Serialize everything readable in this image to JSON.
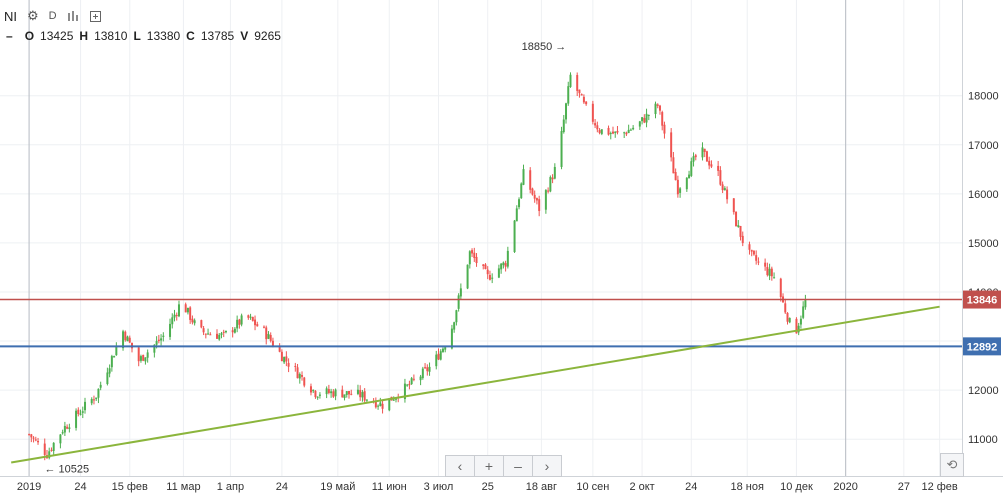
{
  "header": {
    "symbol": "NI",
    "timeframe": "D",
    "icons": [
      "gear-icon",
      "bar-style-icon",
      "compare-icon"
    ],
    "ohlc": [
      {
        "k": "O",
        "v": "13425"
      },
      {
        "k": "H",
        "v": "13810"
      },
      {
        "k": "L",
        "v": "13380"
      },
      {
        "k": "C",
        "v": "13785"
      },
      {
        "k": "V",
        "v": "9265"
      }
    ]
  },
  "nav": {
    "buttons": [
      "‹",
      "+",
      "–",
      "›"
    ],
    "reset": "⟲"
  },
  "colors": {
    "up": "#4caf50",
    "down": "#ef5350",
    "trend": "#8bb53c",
    "resistance": "#c0504d",
    "support": "#3f6fb0"
  },
  "chart_data": {
    "type": "candlestick",
    "y_ticks": [
      11000,
      12000,
      13000,
      14000,
      15000,
      16000,
      17000,
      18000
    ],
    "ylim": [
      10250,
      19950
    ],
    "x_ticks": [
      {
        "label": "2019",
        "day": 0
      },
      {
        "label": "24",
        "day": 23
      },
      {
        "label": "15 фев",
        "day": 45
      },
      {
        "label": "11 мар",
        "day": 69
      },
      {
        "label": "1 апр",
        "day": 90
      },
      {
        "label": "24",
        "day": 113
      },
      {
        "label": "19 май",
        "day": 138
      },
      {
        "label": "11 июн",
        "day": 161
      },
      {
        "label": "3 июл",
        "day": 183
      },
      {
        "label": "25",
        "day": 205
      },
      {
        "label": "18 авг",
        "day": 229
      },
      {
        "label": "10 сен",
        "day": 252
      },
      {
        "label": "2 окт",
        "day": 274
      },
      {
        "label": "24",
        "day": 296
      },
      {
        "label": "18 ноя",
        "day": 321
      },
      {
        "label": "10 дек",
        "day": 343
      },
      {
        "label": "2020",
        "day": 365
      },
      {
        "label": "27",
        "day": 391
      },
      {
        "label": "12 фев",
        "day": 407
      }
    ],
    "xlim": [
      -13,
      417
    ],
    "keyframes": [
      [
        0,
        11100
      ],
      [
        8,
        10700
      ],
      [
        15,
        11200
      ],
      [
        30,
        11900
      ],
      [
        42,
        13200
      ],
      [
        49,
        12600
      ],
      [
        60,
        13100
      ],
      [
        68,
        13800
      ],
      [
        76,
        13200
      ],
      [
        87,
        13100
      ],
      [
        97,
        13500
      ],
      [
        105,
        13200
      ],
      [
        113,
        12700
      ],
      [
        128,
        11950
      ],
      [
        138,
        11950
      ],
      [
        148,
        11900
      ],
      [
        158,
        11700
      ],
      [
        170,
        12100
      ],
      [
        180,
        12500
      ],
      [
        188,
        13100
      ],
      [
        197,
        14800
      ],
      [
        205,
        14300
      ],
      [
        213,
        14600
      ],
      [
        221,
        16400
      ],
      [
        228,
        15700
      ],
      [
        236,
        16600
      ],
      [
        242,
        18400
      ],
      [
        248,
        17800
      ],
      [
        255,
        17300
      ],
      [
        264,
        17200
      ],
      [
        272,
        17400
      ],
      [
        281,
        17800
      ],
      [
        290,
        16100
      ],
      [
        300,
        16900
      ],
      [
        308,
        16400
      ],
      [
        321,
        14800
      ],
      [
        333,
        14300
      ],
      [
        342,
        13100
      ],
      [
        347,
        13800
      ]
    ],
    "lines": [
      {
        "name": "resistance",
        "value": 13846,
        "label": "13846"
      },
      {
        "name": "support",
        "value": 12892,
        "label": "12892"
      },
      {
        "name": "trendline",
        "from": [
          -8,
          10525
        ],
        "to": [
          407,
          13700
        ]
      }
    ],
    "annotations": [
      {
        "text": "18850 →",
        "day": 241,
        "value": 18850
      },
      {
        "text": "← 10525",
        "day": 6,
        "value": 10525
      }
    ],
    "vertical_markers": [
      0,
      365
    ]
  }
}
